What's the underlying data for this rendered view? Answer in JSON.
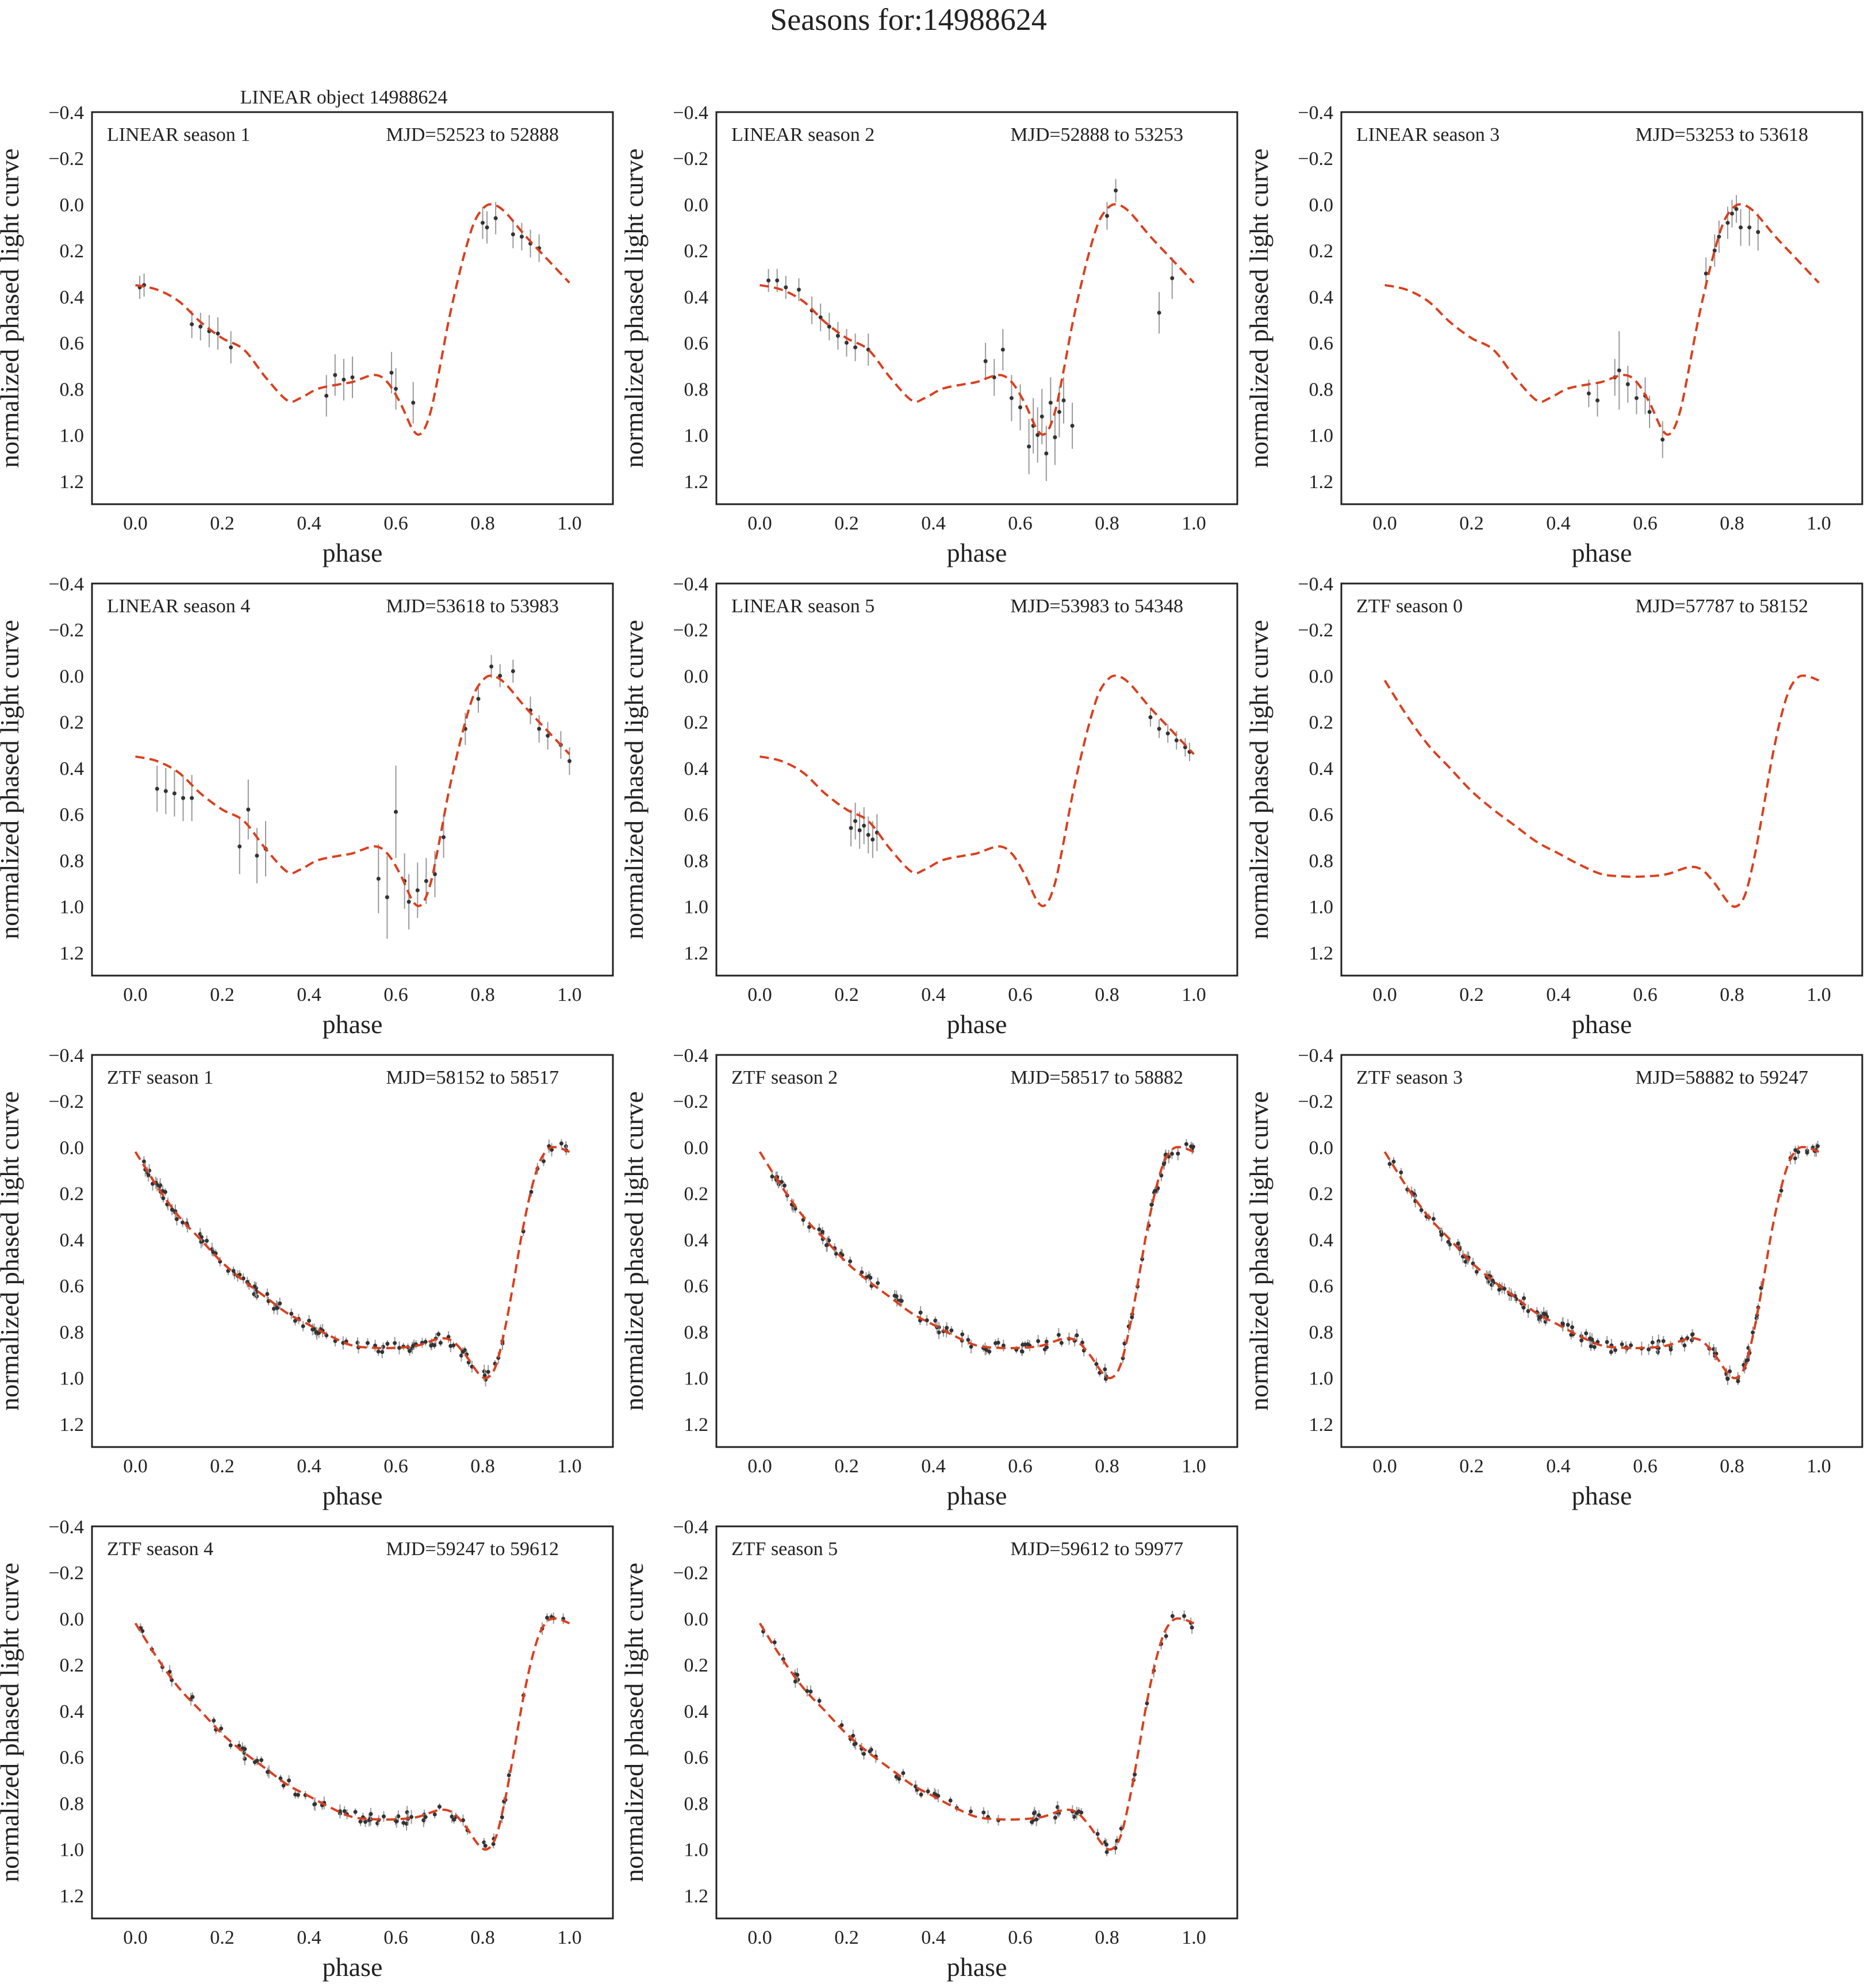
{
  "figure": {
    "suptitle": "Seasons for:14988624",
    "object_label": "LINEAR object 14988624",
    "colors": {
      "fit": "#d9401f",
      "points": "#333333",
      "errorbars": "#999999"
    }
  },
  "chart_data": [
    {
      "type": "scatter",
      "panel_label": "LINEAR season 1",
      "mjd_label": "MJD=52523 to 52888",
      "xlabel": "phase",
      "ylabel": "normalized phased light curve",
      "xlim": [
        -0.1,
        1.1
      ],
      "ylim": [
        1.3,
        -0.4
      ],
      "y_inverted": true,
      "xticks": [
        "0.0",
        "0.2",
        "0.4",
        "0.6",
        "0.8",
        "1.0"
      ],
      "yticks": [
        "−0.4",
        "−0.2",
        "0.0",
        "0.2",
        "0.4",
        "0.6",
        "0.8",
        "1.0",
        "1.2"
      ],
      "fit": "A",
      "points": [
        [
          0.01,
          0.36,
          0.05
        ],
        [
          0.02,
          0.35,
          0.05
        ],
        [
          0.13,
          0.52,
          0.06
        ],
        [
          0.15,
          0.53,
          0.06
        ],
        [
          0.17,
          0.55,
          0.07
        ],
        [
          0.19,
          0.56,
          0.07
        ],
        [
          0.22,
          0.62,
          0.07
        ],
        [
          0.44,
          0.83,
          0.09
        ],
        [
          0.46,
          0.74,
          0.09
        ],
        [
          0.48,
          0.76,
          0.09
        ],
        [
          0.5,
          0.75,
          0.09
        ],
        [
          0.59,
          0.73,
          0.09
        ],
        [
          0.6,
          0.8,
          0.09
        ],
        [
          0.64,
          0.86,
          0.09
        ],
        [
          0.8,
          0.08,
          0.07
        ],
        [
          0.81,
          0.1,
          0.07
        ],
        [
          0.83,
          0.06,
          0.07
        ],
        [
          0.87,
          0.13,
          0.06
        ],
        [
          0.89,
          0.14,
          0.06
        ],
        [
          0.91,
          0.17,
          0.06
        ],
        [
          0.93,
          0.19,
          0.06
        ]
      ]
    },
    {
      "type": "scatter",
      "panel_label": "LINEAR season 2",
      "mjd_label": "MJD=52888 to 53253",
      "xlabel": "phase",
      "ylabel": "normalized phased light curve",
      "xlim": [
        -0.1,
        1.1
      ],
      "ylim": [
        1.3,
        -0.4
      ],
      "y_inverted": true,
      "xticks": [
        "0.0",
        "0.2",
        "0.4",
        "0.6",
        "0.8",
        "1.0"
      ],
      "yticks": [
        "−0.4",
        "−0.2",
        "0.0",
        "0.2",
        "0.4",
        "0.6",
        "0.8",
        "1.0",
        "1.2"
      ],
      "fit": "A",
      "points": [
        [
          0.02,
          0.33,
          0.05
        ],
        [
          0.04,
          0.33,
          0.05
        ],
        [
          0.06,
          0.36,
          0.05
        ],
        [
          0.09,
          0.37,
          0.05
        ],
        [
          0.12,
          0.46,
          0.06
        ],
        [
          0.14,
          0.49,
          0.06
        ],
        [
          0.16,
          0.53,
          0.06
        ],
        [
          0.18,
          0.57,
          0.06
        ],
        [
          0.2,
          0.6,
          0.06
        ],
        [
          0.22,
          0.62,
          0.06
        ],
        [
          0.25,
          0.63,
          0.07
        ],
        [
          0.52,
          0.68,
          0.08
        ],
        [
          0.54,
          0.75,
          0.08
        ],
        [
          0.56,
          0.63,
          0.09
        ],
        [
          0.58,
          0.84,
          0.1
        ],
        [
          0.6,
          0.88,
          0.1
        ],
        [
          0.62,
          1.05,
          0.12
        ],
        [
          0.63,
          0.96,
          0.12
        ],
        [
          0.64,
          1.0,
          0.12
        ],
        [
          0.65,
          0.92,
          0.12
        ],
        [
          0.66,
          1.08,
          0.12
        ],
        [
          0.67,
          0.86,
          0.11
        ],
        [
          0.68,
          1.01,
          0.12
        ],
        [
          0.69,
          0.9,
          0.11
        ],
        [
          0.7,
          0.85,
          0.1
        ],
        [
          0.72,
          0.96,
          0.1
        ],
        [
          0.8,
          0.05,
          0.06
        ],
        [
          0.82,
          -0.06,
          0.05
        ],
        [
          0.92,
          0.47,
          0.09
        ],
        [
          0.95,
          0.32,
          0.09
        ]
      ]
    },
    {
      "type": "scatter",
      "panel_label": "LINEAR season 3",
      "mjd_label": "MJD=53253 to 53618",
      "xlabel": "phase",
      "ylabel": "normalized phased light curve",
      "xlim": [
        -0.1,
        1.1
      ],
      "ylim": [
        1.3,
        -0.4
      ],
      "y_inverted": true,
      "xticks": [
        "0.0",
        "0.2",
        "0.4",
        "0.6",
        "0.8",
        "1.0"
      ],
      "yticks": [
        "−0.4",
        "−0.2",
        "0.0",
        "0.2",
        "0.4",
        "0.6",
        "0.8",
        "1.0",
        "1.2"
      ],
      "fit": "A",
      "points": [
        [
          0.47,
          0.82,
          0.06
        ],
        [
          0.49,
          0.85,
          0.07
        ],
        [
          0.53,
          0.75,
          0.08
        ],
        [
          0.54,
          0.72,
          0.17
        ],
        [
          0.56,
          0.78,
          0.08
        ],
        [
          0.58,
          0.84,
          0.07
        ],
        [
          0.6,
          0.83,
          0.08
        ],
        [
          0.61,
          0.9,
          0.07
        ],
        [
          0.64,
          1.02,
          0.08
        ],
        [
          0.74,
          0.3,
          0.07
        ],
        [
          0.76,
          0.2,
          0.07
        ],
        [
          0.77,
          0.14,
          0.07
        ],
        [
          0.79,
          0.08,
          0.07
        ],
        [
          0.8,
          0.04,
          0.06
        ],
        [
          0.81,
          0.02,
          0.06
        ],
        [
          0.82,
          0.1,
          0.08
        ],
        [
          0.84,
          0.1,
          0.08
        ],
        [
          0.86,
          0.12,
          0.08
        ]
      ]
    },
    {
      "type": "scatter",
      "panel_label": "LINEAR season 4",
      "mjd_label": "MJD=53618 to 53983",
      "xlabel": "phase",
      "ylabel": "normalized phased light curve",
      "xlim": [
        -0.1,
        1.1
      ],
      "ylim": [
        1.3,
        -0.4
      ],
      "y_inverted": true,
      "xticks": [
        "0.0",
        "0.2",
        "0.4",
        "0.6",
        "0.8",
        "1.0"
      ],
      "yticks": [
        "−0.4",
        "−0.2",
        "0.0",
        "0.2",
        "0.4",
        "0.6",
        "0.8",
        "1.0",
        "1.2"
      ],
      "fit": "A",
      "points": [
        [
          0.05,
          0.49,
          0.1
        ],
        [
          0.07,
          0.5,
          0.1
        ],
        [
          0.09,
          0.51,
          0.1
        ],
        [
          0.11,
          0.53,
          0.1
        ],
        [
          0.13,
          0.53,
          0.1
        ],
        [
          0.24,
          0.74,
          0.12
        ],
        [
          0.26,
          0.58,
          0.13
        ],
        [
          0.28,
          0.78,
          0.12
        ],
        [
          0.3,
          0.75,
          0.12
        ],
        [
          0.56,
          0.88,
          0.15
        ],
        [
          0.58,
          0.96,
          0.18
        ],
        [
          0.6,
          0.59,
          0.2
        ],
        [
          0.62,
          0.89,
          0.12
        ],
        [
          0.63,
          0.98,
          0.12
        ],
        [
          0.65,
          0.93,
          0.12
        ],
        [
          0.67,
          0.89,
          0.1
        ],
        [
          0.69,
          0.86,
          0.1
        ],
        [
          0.71,
          0.7,
          0.09
        ],
        [
          0.76,
          0.23,
          0.07
        ],
        [
          0.79,
          0.1,
          0.06
        ],
        [
          0.82,
          -0.04,
          0.05
        ],
        [
          0.84,
          0.0,
          0.05
        ],
        [
          0.87,
          -0.02,
          0.05
        ],
        [
          0.91,
          0.15,
          0.06
        ],
        [
          0.93,
          0.23,
          0.06
        ],
        [
          0.95,
          0.26,
          0.06
        ],
        [
          0.98,
          0.3,
          0.06
        ],
        [
          1.0,
          0.37,
          0.06
        ]
      ]
    },
    {
      "type": "scatter",
      "panel_label": "LINEAR season 5",
      "mjd_label": "MJD=53983 to 54348",
      "xlabel": "phase",
      "ylabel": "normalized phased light curve",
      "xlim": [
        -0.1,
        1.1
      ],
      "ylim": [
        1.3,
        -0.4
      ],
      "y_inverted": true,
      "xticks": [
        "0.0",
        "0.2",
        "0.4",
        "0.6",
        "0.8",
        "1.0"
      ],
      "yticks": [
        "−0.4",
        "−0.2",
        "0.0",
        "0.2",
        "0.4",
        "0.6",
        "0.8",
        "1.0",
        "1.2"
      ],
      "fit": "A",
      "points": [
        [
          0.21,
          0.66,
          0.08
        ],
        [
          0.22,
          0.63,
          0.08
        ],
        [
          0.23,
          0.67,
          0.08
        ],
        [
          0.24,
          0.65,
          0.08
        ],
        [
          0.25,
          0.69,
          0.08
        ],
        [
          0.26,
          0.71,
          0.08
        ],
        [
          0.27,
          0.68,
          0.08
        ],
        [
          0.9,
          0.18,
          0.04
        ],
        [
          0.92,
          0.23,
          0.04
        ],
        [
          0.94,
          0.25,
          0.04
        ],
        [
          0.96,
          0.28,
          0.04
        ],
        [
          0.98,
          0.31,
          0.04
        ],
        [
          0.99,
          0.33,
          0.04
        ]
      ]
    },
    {
      "type": "line",
      "panel_label": "ZTF season 0",
      "mjd_label": "MJD=57787 to 58152",
      "xlabel": "phase",
      "ylabel": "normalized phased light curve",
      "xlim": [
        -0.1,
        1.1
      ],
      "ylim": [
        1.3,
        -0.4
      ],
      "y_inverted": true,
      "xticks": [
        "0.0",
        "0.2",
        "0.4",
        "0.6",
        "0.8",
        "1.0"
      ],
      "yticks": [
        "−0.4",
        "−0.2",
        "0.0",
        "0.2",
        "0.4",
        "0.6",
        "0.8",
        "1.0",
        "1.2"
      ],
      "fit": "B",
      "points": []
    },
    {
      "type": "scatter",
      "panel_label": "ZTF season 1",
      "mjd_label": "MJD=58152 to 58517",
      "xlabel": "phase",
      "ylabel": "normalized phased light curve",
      "xlim": [
        -0.1,
        1.1
      ],
      "ylim": [
        1.3,
        -0.4
      ],
      "y_inverted": true,
      "xticks": [
        "0.0",
        "0.2",
        "0.4",
        "0.6",
        "0.8",
        "1.0"
      ],
      "yticks": [
        "−0.4",
        "−0.2",
        "0.0",
        "0.2",
        "0.4",
        "0.6",
        "0.8",
        "1.0",
        "1.2"
      ],
      "fit": "B",
      "dense_points": 120,
      "seed": 11,
      "points": []
    },
    {
      "type": "scatter",
      "panel_label": "ZTF season 2",
      "mjd_label": "MJD=58517 to 58882",
      "xlabel": "phase",
      "ylabel": "normalized phased light curve",
      "xlim": [
        -0.1,
        1.1
      ],
      "ylim": [
        1.3,
        -0.4
      ],
      "y_inverted": true,
      "xticks": [
        "0.0",
        "0.2",
        "0.4",
        "0.6",
        "0.8",
        "1.0"
      ],
      "yticks": [
        "−0.4",
        "−0.2",
        "0.0",
        "0.2",
        "0.4",
        "0.6",
        "0.8",
        "1.0",
        "1.2"
      ],
      "fit": "B",
      "dense_points": 110,
      "seed": 23,
      "points": []
    },
    {
      "type": "scatter",
      "panel_label": "ZTF season 3",
      "mjd_label": "MJD=58882 to 59247",
      "xlabel": "phase",
      "ylabel": "normalized phased light curve",
      "xlim": [
        -0.1,
        1.1
      ],
      "ylim": [
        1.3,
        -0.4
      ],
      "y_inverted": true,
      "xticks": [
        "0.0",
        "0.2",
        "0.4",
        "0.6",
        "0.8",
        "1.0"
      ],
      "yticks": [
        "−0.4",
        "−0.2",
        "0.0",
        "0.2",
        "0.4",
        "0.6",
        "0.8",
        "1.0",
        "1.2"
      ],
      "fit": "B",
      "dense_points": 140,
      "seed": 37,
      "points": []
    },
    {
      "type": "scatter",
      "panel_label": "ZTF season 4",
      "mjd_label": "MJD=59247 to 59612",
      "xlabel": "phase",
      "ylabel": "normalized phased light curve",
      "xlim": [
        -0.1,
        1.1
      ],
      "ylim": [
        1.3,
        -0.4
      ],
      "y_inverted": true,
      "xticks": [
        "0.0",
        "0.2",
        "0.4",
        "0.6",
        "0.8",
        "1.0"
      ],
      "yticks": [
        "−0.4",
        "−0.2",
        "0.0",
        "0.2",
        "0.4",
        "0.6",
        "0.8",
        "1.0",
        "1.2"
      ],
      "fit": "B",
      "dense_points": 80,
      "seed": 41,
      "points": []
    },
    {
      "type": "scatter",
      "panel_label": "ZTF season 5",
      "mjd_label": "MJD=59612 to 59977",
      "xlabel": "phase",
      "ylabel": "normalized phased light curve",
      "xlim": [
        -0.1,
        1.1
      ],
      "ylim": [
        1.3,
        -0.4
      ],
      "y_inverted": true,
      "xticks": [
        "0.0",
        "0.2",
        "0.4",
        "0.6",
        "0.8",
        "1.0"
      ],
      "yticks": [
        "−0.4",
        "−0.2",
        "0.0",
        "0.2",
        "0.4",
        "0.6",
        "0.8",
        "1.0",
        "1.2"
      ],
      "fit": "B",
      "dense_points": 70,
      "seed": 53,
      "points": []
    }
  ],
  "fits": {
    "A": [
      [
        0.0,
        0.35
      ],
      [
        0.05,
        0.37
      ],
      [
        0.1,
        0.42
      ],
      [
        0.15,
        0.51
      ],
      [
        0.2,
        0.58
      ],
      [
        0.25,
        0.63
      ],
      [
        0.3,
        0.75
      ],
      [
        0.35,
        0.85
      ],
      [
        0.38,
        0.84
      ],
      [
        0.42,
        0.8
      ],
      [
        0.47,
        0.78
      ],
      [
        0.5,
        0.77
      ],
      [
        0.55,
        0.74
      ],
      [
        0.58,
        0.77
      ],
      [
        0.61,
        0.86
      ],
      [
        0.64,
        0.98
      ],
      [
        0.66,
        0.99
      ],
      [
        0.68,
        0.9
      ],
      [
        0.7,
        0.72
      ],
      [
        0.72,
        0.52
      ],
      [
        0.74,
        0.35
      ],
      [
        0.76,
        0.2
      ],
      [
        0.78,
        0.08
      ],
      [
        0.8,
        0.02
      ],
      [
        0.82,
        0.0
      ],
      [
        0.85,
        0.03
      ],
      [
        0.9,
        0.14
      ],
      [
        0.95,
        0.24
      ],
      [
        1.0,
        0.34
      ]
    ],
    "B": [
      [
        0.0,
        0.02
      ],
      [
        0.05,
        0.17
      ],
      [
        0.1,
        0.3
      ],
      [
        0.15,
        0.4
      ],
      [
        0.2,
        0.5
      ],
      [
        0.25,
        0.58
      ],
      [
        0.3,
        0.65
      ],
      [
        0.35,
        0.72
      ],
      [
        0.4,
        0.77
      ],
      [
        0.45,
        0.82
      ],
      [
        0.5,
        0.86
      ],
      [
        0.55,
        0.87
      ],
      [
        0.6,
        0.87
      ],
      [
        0.65,
        0.86
      ],
      [
        0.7,
        0.83
      ],
      [
        0.73,
        0.84
      ],
      [
        0.76,
        0.9
      ],
      [
        0.79,
        0.98
      ],
      [
        0.81,
        1.0
      ],
      [
        0.83,
        0.95
      ],
      [
        0.85,
        0.8
      ],
      [
        0.87,
        0.6
      ],
      [
        0.89,
        0.38
      ],
      [
        0.91,
        0.2
      ],
      [
        0.93,
        0.07
      ],
      [
        0.95,
        0.01
      ],
      [
        0.97,
        0.0
      ],
      [
        1.0,
        0.02
      ]
    ]
  }
}
